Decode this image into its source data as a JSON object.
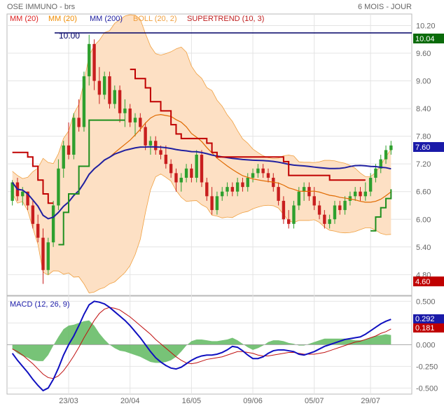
{
  "header": {
    "title": "OSE IMMUNO - brs",
    "period": "6 MOIS - JOUR"
  },
  "legend": [
    {
      "label": "MM (20)",
      "color": "#dd2222"
    },
    {
      "label": "MM (20)",
      "color": "#f08c00"
    },
    {
      "label": "MM (200)",
      "color": "#2020a0"
    },
    {
      "label": "BOLL (20, 2)",
      "color": "#f0a040"
    },
    {
      "label": "SUPERTREND (10, 3)",
      "color": "#c02020"
    }
  ],
  "price_axis": {
    "ticks": [
      "10.20",
      "9.60",
      "9.00",
      "8.40",
      "7.80",
      "7.20",
      "6.60",
      "6.00",
      "5.40",
      "4.80"
    ],
    "tick_values": [
      10.2,
      9.6,
      9.0,
      8.4,
      7.8,
      7.2,
      6.6,
      6.0,
      5.4,
      4.8
    ],
    "ylim": [
      4.35,
      10.45
    ]
  },
  "x_axis": {
    "ticks": [
      "23/03",
      "20/04",
      "16/05",
      "09/06",
      "05/07",
      "29/07"
    ]
  },
  "badges": {
    "high_line": "10.04",
    "last": "7.60",
    "low": "4.60",
    "high_label": "10.00"
  },
  "macd": {
    "title": "MACD (12, 26, 9)",
    "ticks": [
      "0.500",
      "0.250",
      "0.000",
      "-0.250",
      "-0.500"
    ],
    "tick_values": [
      0.5,
      0.25,
      0.0,
      -0.25,
      -0.5
    ],
    "ylim": [
      -0.57,
      0.56
    ],
    "badge_macd": "0.292",
    "badge_signal": "0.181"
  },
  "colors": {
    "up": "#2ea02e",
    "down": "#c81e1e",
    "boll_fill": "#fde0c4",
    "boll_line": "#f0a040",
    "mm20": "#e06a00",
    "mm200": "#2020a0",
    "supertrend_down": "#c00000",
    "supertrend_up": "#1f8f1f",
    "macd_line": "#1010c0",
    "signal_line": "#c01010",
    "hist": "#5fb85f",
    "badge_green": "#0a6b0a",
    "badge_blue": "#1a1aa8",
    "badge_red": "#c00000",
    "hline": "#000066"
  },
  "chart_data": {
    "type": "candlestick",
    "ohlc": [
      [
        6.4,
        6.85,
        6.3,
        6.8
      ],
      [
        6.8,
        6.9,
        6.4,
        6.5
      ],
      [
        6.5,
        6.7,
        6.3,
        6.6
      ],
      [
        6.6,
        6.6,
        6.2,
        6.3
      ],
      [
        6.3,
        6.4,
        5.8,
        5.9
      ],
      [
        5.9,
        6.1,
        5.5,
        5.6
      ],
      [
        5.6,
        5.8,
        4.6,
        4.9
      ],
      [
        4.9,
        5.6,
        4.8,
        5.5
      ],
      [
        5.5,
        6.4,
        5.4,
        6.3
      ],
      [
        6.3,
        7.3,
        6.2,
        7.1
      ],
      [
        7.1,
        7.7,
        6.9,
        7.6
      ],
      [
        7.6,
        8.1,
        7.3,
        7.4
      ],
      [
        7.4,
        8.3,
        7.3,
        8.2
      ],
      [
        8.2,
        8.6,
        7.9,
        8.0
      ],
      [
        8.0,
        9.2,
        7.9,
        9.1
      ],
      [
        9.1,
        10.0,
        8.9,
        9.8
      ],
      [
        9.8,
        9.9,
        8.8,
        9.0
      ],
      [
        9.0,
        9.3,
        8.5,
        8.7
      ],
      [
        8.7,
        9.2,
        8.6,
        9.1
      ],
      [
        9.1,
        9.2,
        8.4,
        8.5
      ],
      [
        8.5,
        8.9,
        8.4,
        8.8
      ],
      [
        8.8,
        8.9,
        8.1,
        8.3
      ],
      [
        8.3,
        8.6,
        8.0,
        8.4
      ],
      [
        8.4,
        8.5,
        8.0,
        8.1
      ],
      [
        8.1,
        8.3,
        7.8,
        8.2
      ],
      [
        8.2,
        8.3,
        7.9,
        8.0
      ],
      [
        8.0,
        8.1,
        7.5,
        7.6
      ],
      [
        7.6,
        7.8,
        7.4,
        7.7
      ],
      [
        7.7,
        7.8,
        7.4,
        7.5
      ],
      [
        7.5,
        7.6,
        7.3,
        7.4
      ],
      [
        7.4,
        7.6,
        7.1,
        7.2
      ],
      [
        7.2,
        7.3,
        6.9,
        7.0
      ],
      [
        7.0,
        7.1,
        6.6,
        6.8
      ],
      [
        6.8,
        7.0,
        6.6,
        6.9
      ],
      [
        6.9,
        7.2,
        6.8,
        7.1
      ],
      [
        7.1,
        7.2,
        6.8,
        6.9
      ],
      [
        6.9,
        7.5,
        6.8,
        7.4
      ],
      [
        7.4,
        7.5,
        6.7,
        6.8
      ],
      [
        6.8,
        6.9,
        6.4,
        6.5
      ],
      [
        6.5,
        6.7,
        6.1,
        6.2
      ],
      [
        6.2,
        6.6,
        6.1,
        6.5
      ],
      [
        6.5,
        6.7,
        6.4,
        6.6
      ],
      [
        6.6,
        6.8,
        6.5,
        6.7
      ],
      [
        6.7,
        6.8,
        6.5,
        6.6
      ],
      [
        6.6,
        6.9,
        6.5,
        6.8
      ],
      [
        6.8,
        6.9,
        6.6,
        6.7
      ],
      [
        6.7,
        7.0,
        6.6,
        6.9
      ],
      [
        6.9,
        7.1,
        6.8,
        7.0
      ],
      [
        7.0,
        7.2,
        6.9,
        7.1
      ],
      [
        7.1,
        7.2,
        6.9,
        7.0
      ],
      [
        7.0,
        7.1,
        6.8,
        6.9
      ],
      [
        6.9,
        7.0,
        6.6,
        6.7
      ],
      [
        6.7,
        6.8,
        6.3,
        6.4
      ],
      [
        6.4,
        6.5,
        5.9,
        6.0
      ],
      [
        6.0,
        6.2,
        5.8,
        5.9
      ],
      [
        5.9,
        6.4,
        5.8,
        6.3
      ],
      [
        6.3,
        6.7,
        6.2,
        6.6
      ],
      [
        6.6,
        6.8,
        6.4,
        6.7
      ],
      [
        6.7,
        6.8,
        6.4,
        6.5
      ],
      [
        6.5,
        6.7,
        6.2,
        6.3
      ],
      [
        6.3,
        6.4,
        6.0,
        6.1
      ],
      [
        6.1,
        6.2,
        5.8,
        5.9
      ],
      [
        5.9,
        6.1,
        5.8,
        6.0
      ],
      [
        6.0,
        6.4,
        5.9,
        6.3
      ],
      [
        6.3,
        6.4,
        6.1,
        6.2
      ],
      [
        6.2,
        6.5,
        6.1,
        6.4
      ],
      [
        6.4,
        6.6,
        6.3,
        6.5
      ],
      [
        6.5,
        6.7,
        6.4,
        6.6
      ],
      [
        6.6,
        6.7,
        6.4,
        6.5
      ],
      [
        6.5,
        6.8,
        6.4,
        6.6
      ],
      [
        6.6,
        7.0,
        6.5,
        6.9
      ],
      [
        6.9,
        7.2,
        6.8,
        7.1
      ],
      [
        7.1,
        7.4,
        7.0,
        7.3
      ],
      [
        7.3,
        7.6,
        7.2,
        7.5
      ],
      [
        7.5,
        7.7,
        7.4,
        7.6
      ]
    ],
    "macd": [
      -0.1,
      -0.18,
      -0.25,
      -0.32,
      -0.4,
      -0.47,
      -0.53,
      -0.5,
      -0.4,
      -0.27,
      -0.12,
      0.0,
      0.1,
      0.22,
      0.35,
      0.46,
      0.5,
      0.49,
      0.47,
      0.43,
      0.38,
      0.33,
      0.28,
      0.22,
      0.15,
      0.08,
      0.0,
      -0.08,
      -0.15,
      -0.2,
      -0.24,
      -0.27,
      -0.28,
      -0.26,
      -0.22,
      -0.18,
      -0.15,
      -0.13,
      -0.12,
      -0.12,
      -0.11,
      -0.09,
      -0.06,
      -0.02,
      -0.03,
      -0.07,
      -0.12,
      -0.16,
      -0.16,
      -0.14,
      -0.1,
      -0.07,
      -0.06,
      -0.06,
      -0.07,
      -0.08,
      -0.11,
      -0.12,
      -0.1,
      -0.08,
      -0.05,
      -0.02,
      0.0,
      0.02,
      0.04,
      0.06,
      0.07,
      0.08,
      0.09,
      0.12,
      0.16,
      0.2,
      0.24,
      0.27,
      0.292
    ],
    "signal": [
      -0.05,
      -0.08,
      -0.12,
      -0.17,
      -0.22,
      -0.28,
      -0.34,
      -0.38,
      -0.39,
      -0.36,
      -0.3,
      -0.22,
      -0.13,
      -0.03,
      0.08,
      0.18,
      0.28,
      0.36,
      0.41,
      0.43,
      0.42,
      0.4,
      0.36,
      0.32,
      0.27,
      0.22,
      0.17,
      0.12,
      0.06,
      0.01,
      -0.04,
      -0.09,
      -0.14,
      -0.18,
      -0.21,
      -0.22,
      -0.21,
      -0.19,
      -0.17,
      -0.16,
      -0.15,
      -0.14,
      -0.12,
      -0.1,
      -0.08,
      -0.08,
      -0.09,
      -0.1,
      -0.12,
      -0.13,
      -0.13,
      -0.12,
      -0.11,
      -0.1,
      -0.09,
      -0.09,
      -0.1,
      -0.11,
      -0.11,
      -0.11,
      -0.1,
      -0.09,
      -0.07,
      -0.05,
      -0.03,
      -0.01,
      0.01,
      0.03,
      0.04,
      0.06,
      0.08,
      0.1,
      0.13,
      0.15,
      0.181
    ]
  }
}
